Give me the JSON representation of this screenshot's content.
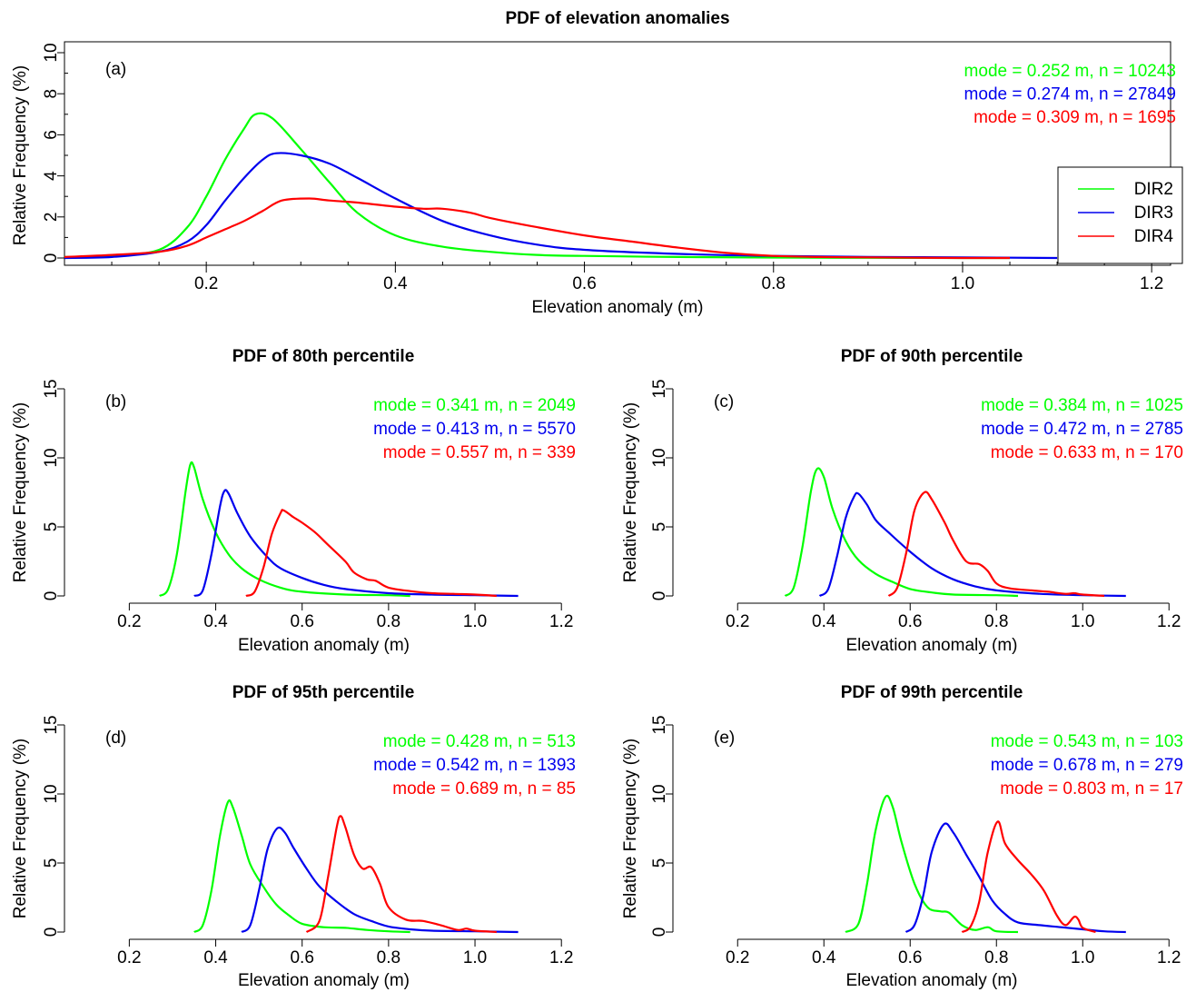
{
  "colors": {
    "DIR2": "#00ff00",
    "DIR3": "#0000ee",
    "DIR4": "#ff0000",
    "axis": "#000000"
  },
  "legend": {
    "items": [
      "DIR2",
      "DIR3",
      "DIR4"
    ]
  },
  "chart_data": [
    {
      "id": "a",
      "type": "line",
      "title": "PDF of elevation anomalies",
      "panel_label": "(a)",
      "xlabel": "Elevation anomaly (m)",
      "ylabel": "Relative Frequency (%)",
      "xlim": [
        0.05,
        1.22
      ],
      "ylim": [
        0,
        10
      ],
      "xticks": [
        0.2,
        0.4,
        0.6,
        0.8,
        1.0,
        1.2
      ],
      "xtick_labels": [
        "0.2",
        "0.4",
        "0.6",
        "0.8",
        "1.0",
        "1.2"
      ],
      "yticks": [
        0,
        2,
        4,
        6,
        8,
        10
      ],
      "ytick_labels": [
        "0",
        "2",
        "4",
        "6",
        "8",
        "10"
      ],
      "legend": "right",
      "annotations": [
        "mode = 0.252 m,  n = 10243",
        "mode = 0.274 m,  n = 27849",
        "mode = 0.309 m,  n = 1695"
      ],
      "series": [
        {
          "name": "DIR2",
          "x": [
            0.05,
            0.1,
            0.15,
            0.18,
            0.2,
            0.22,
            0.24,
            0.252,
            0.27,
            0.3,
            0.33,
            0.36,
            0.4,
            0.45,
            0.5,
            0.55,
            0.6,
            0.7,
            0.8,
            0.9,
            1.0,
            1.05
          ],
          "y": [
            0.05,
            0.1,
            0.4,
            1.5,
            3.0,
            4.8,
            6.3,
            7.0,
            6.8,
            5.3,
            3.7,
            2.2,
            1.1,
            0.55,
            0.3,
            0.15,
            0.1,
            0.05,
            0.02,
            0.01,
            0.0,
            0.0
          ]
        },
        {
          "name": "DIR3",
          "x": [
            0.05,
            0.1,
            0.15,
            0.18,
            0.2,
            0.22,
            0.24,
            0.26,
            0.274,
            0.3,
            0.33,
            0.36,
            0.4,
            0.45,
            0.5,
            0.55,
            0.6,
            0.7,
            0.8,
            0.9,
            1.0,
            1.1
          ],
          "y": [
            0.0,
            0.05,
            0.3,
            0.8,
            1.6,
            2.8,
            3.9,
            4.8,
            5.1,
            5.0,
            4.6,
            3.9,
            2.9,
            1.8,
            1.1,
            0.65,
            0.4,
            0.2,
            0.1,
            0.05,
            0.03,
            0.0
          ]
        },
        {
          "name": "DIR4",
          "x": [
            0.05,
            0.1,
            0.15,
            0.18,
            0.2,
            0.22,
            0.24,
            0.26,
            0.28,
            0.309,
            0.33,
            0.36,
            0.4,
            0.43,
            0.45,
            0.48,
            0.5,
            0.55,
            0.6,
            0.65,
            0.7,
            0.75,
            0.8,
            0.85,
            0.9,
            1.0,
            1.05
          ],
          "y": [
            0.05,
            0.15,
            0.3,
            0.6,
            1.0,
            1.4,
            1.8,
            2.3,
            2.8,
            2.9,
            2.8,
            2.7,
            2.5,
            2.4,
            2.4,
            2.2,
            1.95,
            1.5,
            1.1,
            0.8,
            0.5,
            0.25,
            0.1,
            0.05,
            0.03,
            0.0,
            0.0
          ]
        }
      ]
    },
    {
      "id": "b",
      "type": "line",
      "title": "PDF of 80th percentile",
      "panel_label": "(b)",
      "xlabel": "Elevation anomaly (m)",
      "ylabel": "Relative Frequency (%)",
      "xlim": [
        0.05,
        1.25
      ],
      "ylim": [
        0,
        15
      ],
      "xticks": [
        0.2,
        0.4,
        0.6,
        0.8,
        1.0,
        1.2
      ],
      "xtick_labels": [
        "0.2",
        "0.4",
        "0.6",
        "0.8",
        "1.0",
        "1.2"
      ],
      "yticks": [
        0,
        5,
        10,
        15
      ],
      "ytick_labels": [
        "0",
        "5",
        "10",
        "15"
      ],
      "annotations": [
        "mode = 0.341 m,  n = 2049",
        "mode = 0.413 m,  n = 5570",
        "mode = 0.557 m,  n = 339"
      ],
      "series": [
        {
          "name": "DIR2",
          "x": [
            0.27,
            0.29,
            0.31,
            0.33,
            0.341,
            0.35,
            0.37,
            0.4,
            0.43,
            0.46,
            0.5,
            0.55,
            0.6,
            0.7,
            0.8,
            0.85
          ],
          "y": [
            0.0,
            0.5,
            3.0,
            7.5,
            9.5,
            9.3,
            7.0,
            4.6,
            3.0,
            2.0,
            1.2,
            0.6,
            0.3,
            0.1,
            0.05,
            0.0
          ]
        },
        {
          "name": "DIR3",
          "x": [
            0.35,
            0.37,
            0.39,
            0.41,
            0.42,
            0.43,
            0.45,
            0.48,
            0.52,
            0.55,
            0.6,
            0.65,
            0.7,
            0.8,
            0.9,
            1.0,
            1.1
          ],
          "y": [
            0.0,
            0.4,
            3.0,
            6.5,
            7.6,
            7.4,
            6.0,
            4.3,
            2.8,
            2.0,
            1.3,
            0.8,
            0.5,
            0.2,
            0.1,
            0.05,
            0.0
          ]
        },
        {
          "name": "DIR4",
          "x": [
            0.47,
            0.49,
            0.51,
            0.53,
            0.55,
            0.557,
            0.58,
            0.6,
            0.63,
            0.66,
            0.7,
            0.72,
            0.75,
            0.77,
            0.8,
            0.85,
            0.9,
            0.95,
            1.0,
            1.05
          ],
          "y": [
            0.0,
            0.3,
            2.0,
            4.5,
            6.0,
            6.2,
            5.7,
            5.3,
            4.6,
            3.7,
            2.5,
            1.7,
            1.2,
            1.1,
            0.6,
            0.35,
            0.2,
            0.15,
            0.1,
            0.0
          ]
        }
      ]
    },
    {
      "id": "c",
      "type": "line",
      "title": "PDF of 90th percentile",
      "panel_label": "(c)",
      "xlabel": "Elevation anomaly (m)",
      "ylabel": "Relative Frequency (%)",
      "xlim": [
        0.05,
        1.25
      ],
      "ylim": [
        0,
        15
      ],
      "xticks": [
        0.2,
        0.4,
        0.6,
        0.8,
        1.0,
        1.2
      ],
      "xtick_labels": [
        "0.2",
        "0.4",
        "0.6",
        "0.8",
        "1.0",
        "1.2"
      ],
      "yticks": [
        0,
        5,
        10,
        15
      ],
      "ytick_labels": [
        "0",
        "5",
        "10",
        "15"
      ],
      "annotations": [
        "mode = 0.384 m,  n = 1025",
        "mode = 0.472 m,  n = 2785",
        "mode = 0.633 m,  n = 170"
      ],
      "series": [
        {
          "name": "DIR2",
          "x": [
            0.31,
            0.33,
            0.35,
            0.37,
            0.384,
            0.4,
            0.42,
            0.45,
            0.48,
            0.52,
            0.56,
            0.6,
            0.65,
            0.7,
            0.8,
            0.85
          ],
          "y": [
            0.0,
            0.6,
            3.5,
            7.6,
            9.2,
            8.6,
            6.3,
            4.0,
            2.6,
            1.6,
            1.0,
            0.5,
            0.25,
            0.1,
            0.05,
            0.0
          ]
        },
        {
          "name": "DIR3",
          "x": [
            0.39,
            0.41,
            0.43,
            0.45,
            0.47,
            0.48,
            0.5,
            0.52,
            0.55,
            0.6,
            0.65,
            0.7,
            0.75,
            0.8,
            0.9,
            1.0,
            1.1
          ],
          "y": [
            0.0,
            0.5,
            2.8,
            5.6,
            7.2,
            7.4,
            6.6,
            5.5,
            4.6,
            3.2,
            2.0,
            1.2,
            0.7,
            0.4,
            0.15,
            0.05,
            0.0
          ]
        },
        {
          "name": "DIR4",
          "x": [
            0.55,
            0.57,
            0.59,
            0.61,
            0.633,
            0.65,
            0.68,
            0.7,
            0.73,
            0.76,
            0.78,
            0.8,
            0.83,
            0.88,
            0.92,
            0.96,
            0.98,
            1.0,
            1.05
          ],
          "y": [
            0.0,
            0.6,
            3.0,
            6.2,
            7.5,
            7.0,
            5.3,
            4.0,
            2.5,
            2.3,
            1.8,
            0.9,
            0.55,
            0.4,
            0.3,
            0.15,
            0.2,
            0.1,
            0.0
          ]
        }
      ]
    },
    {
      "id": "d",
      "type": "line",
      "title": "PDF of 95th percentile",
      "panel_label": "(d)",
      "xlabel": "Elevation anomaly (m)",
      "ylabel": "Relative Frequency (%)",
      "xlim": [
        0.05,
        1.25
      ],
      "ylim": [
        0,
        15
      ],
      "xticks": [
        0.2,
        0.4,
        0.6,
        0.8,
        1.0,
        1.2
      ],
      "xtick_labels": [
        "0.2",
        "0.4",
        "0.6",
        "0.8",
        "1.0",
        "1.2"
      ],
      "yticks": [
        0,
        5,
        10,
        15
      ],
      "ytick_labels": [
        "0",
        "5",
        "10",
        "15"
      ],
      "annotations": [
        "mode = 0.428 m,  n = 513",
        "mode = 0.542 m,  n = 1393",
        "mode = 0.689 m,  n = 85"
      ],
      "series": [
        {
          "name": "DIR2",
          "x": [
            0.35,
            0.37,
            0.39,
            0.41,
            0.428,
            0.44,
            0.46,
            0.48,
            0.51,
            0.54,
            0.57,
            0.6,
            0.65,
            0.7,
            0.75,
            0.8,
            0.85
          ],
          "y": [
            0.0,
            0.5,
            3.0,
            7.0,
            9.4,
            9.0,
            7.0,
            4.9,
            3.3,
            2.0,
            1.2,
            0.6,
            0.35,
            0.3,
            0.15,
            0.05,
            0.0
          ]
        },
        {
          "name": "DIR3",
          "x": [
            0.46,
            0.48,
            0.5,
            0.52,
            0.542,
            0.56,
            0.58,
            0.61,
            0.64,
            0.68,
            0.72,
            0.76,
            0.8,
            0.85,
            0.9,
            1.0,
            1.1
          ],
          "y": [
            0.0,
            0.5,
            3.0,
            6.0,
            7.5,
            7.2,
            6.1,
            4.6,
            3.3,
            2.2,
            1.3,
            0.8,
            0.4,
            0.2,
            0.1,
            0.05,
            0.0
          ]
        },
        {
          "name": "DIR4",
          "x": [
            0.61,
            0.64,
            0.66,
            0.68,
            0.689,
            0.7,
            0.72,
            0.74,
            0.76,
            0.78,
            0.8,
            0.84,
            0.88,
            0.92,
            0.96,
            0.98,
            1.0,
            1.05
          ],
          "y": [
            0.0,
            0.8,
            4.0,
            7.6,
            8.4,
            7.6,
            5.6,
            4.6,
            4.7,
            3.5,
            1.8,
            0.9,
            0.8,
            0.5,
            0.15,
            0.25,
            0.1,
            0.0
          ]
        }
      ]
    },
    {
      "id": "e",
      "type": "line",
      "title": "PDF of 99th percentile",
      "panel_label": "(e)",
      "xlabel": "Elevation anomaly (m)",
      "ylabel": "Relative Frequency (%)",
      "xlim": [
        0.05,
        1.25
      ],
      "ylim": [
        0,
        15
      ],
      "xticks": [
        0.2,
        0.4,
        0.6,
        0.8,
        1.0,
        1.2
      ],
      "xtick_labels": [
        "0.2",
        "0.4",
        "0.6",
        "0.8",
        "1.0",
        "1.2"
      ],
      "yticks": [
        0,
        5,
        10,
        15
      ],
      "ytick_labels": [
        "0",
        "5",
        "10",
        "15"
      ],
      "annotations": [
        "mode = 0.543 m,  n = 103",
        "mode = 0.678 m,  n = 279",
        "mode = 0.803 m,  n = 17"
      ],
      "series": [
        {
          "name": "DIR2",
          "x": [
            0.45,
            0.48,
            0.5,
            0.52,
            0.543,
            0.56,
            0.58,
            0.61,
            0.64,
            0.67,
            0.69,
            0.72,
            0.75,
            0.78,
            0.8,
            0.85
          ],
          "y": [
            0.0,
            0.6,
            3.5,
            7.4,
            9.8,
            9.0,
            6.5,
            3.5,
            1.8,
            1.5,
            1.4,
            0.5,
            0.15,
            0.35,
            0.05,
            0.0
          ]
        },
        {
          "name": "DIR3",
          "x": [
            0.59,
            0.61,
            0.63,
            0.65,
            0.678,
            0.7,
            0.73,
            0.76,
            0.79,
            0.82,
            0.85,
            0.9,
            0.95,
            1.0,
            1.05,
            1.1
          ],
          "y": [
            0.0,
            0.5,
            2.6,
            5.8,
            7.8,
            7.2,
            5.6,
            4.0,
            2.3,
            1.3,
            0.7,
            0.5,
            0.35,
            0.2,
            0.05,
            0.0
          ]
        },
        {
          "name": "DIR4",
          "x": [
            0.72,
            0.74,
            0.76,
            0.78,
            0.803,
            0.82,
            0.85,
            0.88,
            0.91,
            0.94,
            0.96,
            0.98,
            0.99,
            1.0,
            1.03
          ],
          "y": [
            0.0,
            0.4,
            2.2,
            5.8,
            8.0,
            6.4,
            5.2,
            4.2,
            3.0,
            1.2,
            0.5,
            1.1,
            0.9,
            0.3,
            0.0
          ]
        }
      ]
    }
  ]
}
